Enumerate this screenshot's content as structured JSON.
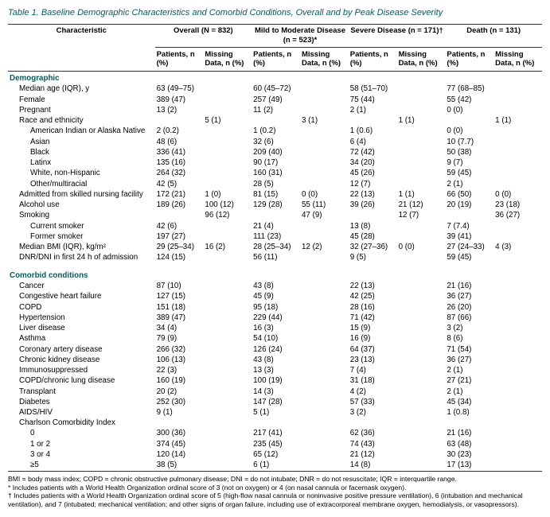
{
  "title_prefix": "Table 1.",
  "title_text": "Baseline Demographic Characteristics and Comorbid Conditions, Overall and by Peak Disease Severity",
  "head": {
    "char": "Characteristic",
    "groups": [
      "Overall (N = 832)",
      "Mild to Moderate Disease (n = 523)*",
      "Severe Disease (n = 171)†",
      "Death (n = 131)"
    ],
    "sub_patients": "Patients, n (%)",
    "sub_missing": "Missing Data, n (%)"
  },
  "sections": [
    {
      "title": "Demographic",
      "rows": [
        {
          "l": "Median age (IQR), y",
          "i": 1,
          "c": [
            "63 (49–75)",
            "",
            "60 (45–72)",
            "",
            "58 (51–70)",
            "",
            "77 (68–85)",
            ""
          ]
        },
        {
          "l": "Female",
          "i": 1,
          "c": [
            "389 (47)",
            "",
            "257 (49)",
            "",
            "75 (44)",
            "",
            "55 (42)",
            ""
          ]
        },
        {
          "l": "Pregnant",
          "i": 1,
          "c": [
            "13 (2)",
            "",
            "11 (2)",
            "",
            "2 (1)",
            "",
            "0 (0)",
            ""
          ]
        },
        {
          "l": "Race and ethnicity",
          "i": 1,
          "c": [
            "",
            "5 (1)",
            "",
            "3 (1)",
            "",
            "1 (1)",
            "",
            "1 (1)"
          ]
        },
        {
          "l": "American Indian or Alaska Native",
          "i": 2,
          "c": [
            "2 (0.2)",
            "",
            "1 (0.2)",
            "",
            "1 (0.6)",
            "",
            "0 (0)",
            ""
          ]
        },
        {
          "l": "Asian",
          "i": 2,
          "c": [
            "48 (6)",
            "",
            "32 (6)",
            "",
            "6 (4)",
            "",
            "10 (7.7)",
            ""
          ]
        },
        {
          "l": "Black",
          "i": 2,
          "c": [
            "336 (41)",
            "",
            "209 (40)",
            "",
            "72 (42)",
            "",
            "50 (38)",
            ""
          ]
        },
        {
          "l": "Latinx",
          "i": 2,
          "c": [
            "135 (16)",
            "",
            "90 (17)",
            "",
            "34 (20)",
            "",
            "9 (7)",
            ""
          ]
        },
        {
          "l": "White, non-Hispanic",
          "i": 2,
          "c": [
            "264 (32)",
            "",
            "160 (31)",
            "",
            "45 (26)",
            "",
            "59 (45)",
            ""
          ]
        },
        {
          "l": "Other/multiracial",
          "i": 2,
          "c": [
            "42 (5)",
            "",
            "28 (5)",
            "",
            "12 (7)",
            "",
            "2 (1)",
            ""
          ]
        },
        {
          "l": "Admitted from skilled nursing facility",
          "i": 1,
          "c": [
            "172 (21)",
            "1 (0)",
            "81 (15)",
            "0 (0)",
            "22 (13)",
            "1 (1)",
            "66 (50)",
            "0 (0)"
          ]
        },
        {
          "l": "Alcohol use",
          "i": 1,
          "c": [
            "189 (26)",
            "100 (12)",
            "129 (28)",
            "55 (11)",
            "39 (26)",
            "21 (12)",
            "20 (19)",
            "23 (18)"
          ]
        },
        {
          "l": "Smoking",
          "i": 1,
          "c": [
            "",
            "96 (12)",
            "",
            "47 (9)",
            "",
            "12 (7)",
            "",
            "36 (27)"
          ]
        },
        {
          "l": "Current smoker",
          "i": 2,
          "c": [
            "42 (6)",
            "",
            "21 (4)",
            "",
            "13 (8)",
            "",
            "7 (7.4)",
            ""
          ]
        },
        {
          "l": "Former smoker",
          "i": 2,
          "c": [
            "197 (27)",
            "",
            "111 (23)",
            "",
            "45 (28)",
            "",
            "39 (41)",
            ""
          ]
        },
        {
          "l": "Median BMI (IQR), kg/m²",
          "i": 1,
          "c": [
            "29 (25–34)",
            "16 (2)",
            "28 (25–34)",
            "12 (2)",
            "32 (27–36)",
            "0 (0)",
            "27 (24–33)",
            "4 (3)"
          ]
        },
        {
          "l": "DNR/DNI in first 24 h of admission",
          "i": 1,
          "c": [
            "124 (15)",
            "",
            "56 (11)",
            "",
            "9 (5)",
            "",
            "59 (45)",
            ""
          ]
        }
      ]
    },
    {
      "title": "Comorbid conditions",
      "rows": [
        {
          "l": "Cancer",
          "i": 1,
          "c": [
            "87 (10)",
            "",
            "43 (8)",
            "",
            "22 (13)",
            "",
            "21 (16)",
            ""
          ]
        },
        {
          "l": "Congestive heart failure",
          "i": 1,
          "c": [
            "127 (15)",
            "",
            "45 (9)",
            "",
            "42 (25)",
            "",
            "36 (27)",
            ""
          ]
        },
        {
          "l": "COPD",
          "i": 1,
          "c": [
            "151 (18)",
            "",
            "95 (18)",
            "",
            "28 (16)",
            "",
            "26 (20)",
            ""
          ]
        },
        {
          "l": "Hypertension",
          "i": 1,
          "c": [
            "389 (47)",
            "",
            "229 (44)",
            "",
            "71 (42)",
            "",
            "87 (66)",
            ""
          ]
        },
        {
          "l": "Liver disease",
          "i": 1,
          "c": [
            "34 (4)",
            "",
            "16 (3)",
            "",
            "15 (9)",
            "",
            "3 (2)",
            ""
          ]
        },
        {
          "l": "Asthma",
          "i": 1,
          "c": [
            "79 (9)",
            "",
            "54 (10)",
            "",
            "16 (9)",
            "",
            "8 (6)",
            ""
          ]
        },
        {
          "l": "Coronary artery disease",
          "i": 1,
          "c": [
            "266 (32)",
            "",
            "126 (24)",
            "",
            "64 (37)",
            "",
            "71 (54)",
            ""
          ]
        },
        {
          "l": "Chronic kidney disease",
          "i": 1,
          "c": [
            "106 (13)",
            "",
            "43 (8)",
            "",
            "23 (13)",
            "",
            "36 (27)",
            ""
          ]
        },
        {
          "l": "Immunosuppressed",
          "i": 1,
          "c": [
            "22 (3)",
            "",
            "13 (3)",
            "",
            "7 (4)",
            "",
            "2 (1)",
            ""
          ]
        },
        {
          "l": "COPD/chronic lung disease",
          "i": 1,
          "c": [
            "160 (19)",
            "",
            "100 (19)",
            "",
            "31 (18)",
            "",
            "27 (21)",
            ""
          ]
        },
        {
          "l": "Transplant",
          "i": 1,
          "c": [
            "20 (2)",
            "",
            "14 (3)",
            "",
            "4 (2)",
            "",
            "2 (1)",
            ""
          ]
        },
        {
          "l": "Diabetes",
          "i": 1,
          "c": [
            "252 (30)",
            "",
            "147 (28)",
            "",
            "57 (33)",
            "",
            "45 (34)",
            ""
          ]
        },
        {
          "l": "AIDS/HIV",
          "i": 1,
          "c": [
            "9 (1)",
            "",
            "5 (1)",
            "",
            "3 (2)",
            "",
            "1 (0.8)",
            ""
          ]
        },
        {
          "l": "Charlson Comorbidity Index",
          "i": 1,
          "c": [
            "",
            "",
            "",
            "",
            "",
            "",
            "",
            ""
          ]
        },
        {
          "l": "0",
          "i": 2,
          "c": [
            "300 (36)",
            "",
            "217 (41)",
            "",
            "62 (36)",
            "",
            "21 (16)",
            ""
          ]
        },
        {
          "l": "1 or 2",
          "i": 2,
          "c": [
            "374 (45)",
            "",
            "235 (45)",
            "",
            "74 (43)",
            "",
            "63 (48)",
            ""
          ]
        },
        {
          "l": "3 or 4",
          "i": 2,
          "c": [
            "120 (14)",
            "",
            "65 (12)",
            "",
            "21 (12)",
            "",
            "30 (23)",
            ""
          ]
        },
        {
          "l": "≥5",
          "i": 2,
          "c": [
            "38 (5)",
            "",
            "6 (1)",
            "",
            "14 (8)",
            "",
            "17 (13)",
            ""
          ]
        }
      ]
    }
  ],
  "footnotes": [
    "BMI = body mass index; COPD = chronic obstructive pulmonary disease; DNI = do not intubate; DNR = do not resuscitate; IQR = interquartile range.",
    "* Includes patients with a World Health Organization ordinal score of 3 (not on oxygen) or 4 (on nasal cannula or facemask oxygen).",
    "† Includes patients with a World Health Organization ordinal score of 5 (high-flow nasal cannula or noninvasive positive pressure ventilation), 6 (intubation and mechanical ventilation), and 7 (intubated; mechanical ventilation; and other signs of organ failure, including use of extracorporeal membrane oxygen, hemodialysis, or vasopressors)."
  ]
}
